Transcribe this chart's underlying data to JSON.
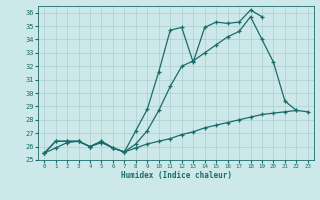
{
  "xlabel": "Humidex (Indice chaleur)",
  "bg_color": "#cce8e8",
  "line_color": "#1a6b6b",
  "grid_color": "#aacfcf",
  "xlim": [
    -0.5,
    23.5
  ],
  "ylim": [
    25,
    36.5
  ],
  "yticks": [
    25,
    26,
    27,
    28,
    29,
    30,
    31,
    32,
    33,
    34,
    35,
    36
  ],
  "xticks": [
    0,
    1,
    2,
    3,
    4,
    5,
    6,
    7,
    8,
    9,
    10,
    11,
    12,
    13,
    14,
    15,
    16,
    17,
    18,
    19,
    20,
    21,
    22,
    23
  ],
  "line1_x": [
    0,
    1,
    2,
    3,
    4,
    5,
    6,
    7,
    8,
    9,
    10,
    11,
    12,
    13,
    14,
    15,
    16,
    17,
    18,
    19
  ],
  "line1_y": [
    25.5,
    26.4,
    26.4,
    26.4,
    26.0,
    26.4,
    25.9,
    25.6,
    27.2,
    28.8,
    31.6,
    34.7,
    34.9,
    32.3,
    34.9,
    35.3,
    35.2,
    35.3,
    36.2,
    35.7
  ],
  "line2_x": [
    0,
    1,
    2,
    3,
    4,
    5,
    6,
    7,
    8,
    9,
    10,
    11,
    12,
    13,
    14,
    15,
    16,
    17,
    18,
    19,
    20,
    21,
    22
  ],
  "line2_y": [
    25.5,
    26.4,
    26.4,
    26.4,
    26.0,
    26.4,
    25.9,
    25.6,
    26.2,
    27.2,
    28.7,
    30.5,
    32.0,
    32.4,
    33.0,
    33.6,
    34.2,
    34.6,
    35.7,
    34.0,
    32.3,
    29.4,
    28.7
  ],
  "line3_x": [
    0,
    1,
    2,
    3,
    4,
    5,
    6,
    7,
    8,
    9,
    10,
    11,
    12,
    13,
    14,
    15,
    16,
    17,
    18,
    19,
    20,
    21,
    22,
    23
  ],
  "line3_y": [
    25.5,
    25.9,
    26.3,
    26.4,
    26.0,
    26.3,
    25.9,
    25.6,
    25.9,
    26.2,
    26.4,
    26.6,
    26.9,
    27.1,
    27.4,
    27.6,
    27.8,
    28.0,
    28.2,
    28.4,
    28.5,
    28.6,
    28.7,
    28.6
  ],
  "markersize": 3,
  "linewidth": 0.9
}
